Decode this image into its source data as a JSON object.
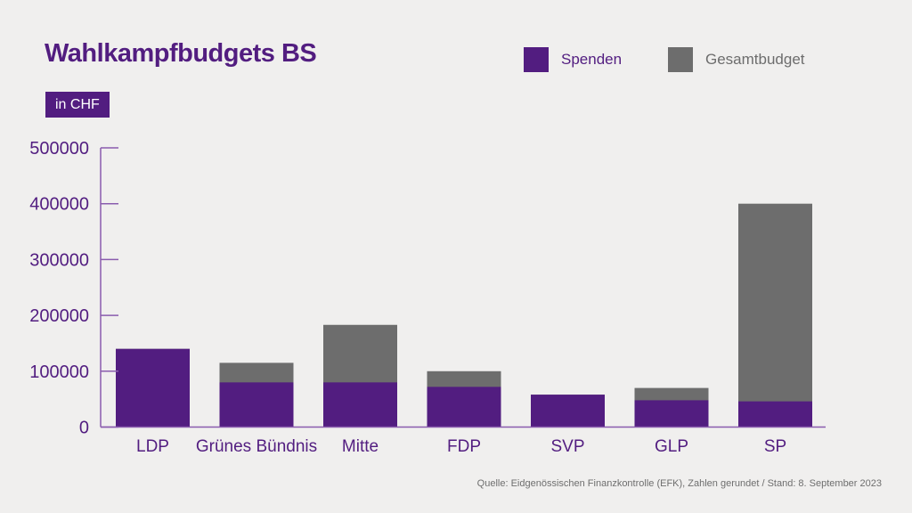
{
  "chart_data": {
    "type": "bar",
    "title": "Wahlkampfbudgets BS",
    "unit_label": "in CHF",
    "categories": [
      "LDP",
      "Grünes Bündnis",
      "Mitte",
      "FDP",
      "SVP",
      "GLP",
      "SP"
    ],
    "series": [
      {
        "name": "Gesamtbudget",
        "color": "#6d6d6d",
        "values": [
          140000,
          115000,
          183000,
          100000,
          58000,
          70000,
          400000
        ]
      },
      {
        "name": "Spenden",
        "color": "#521d80",
        "values": [
          140000,
          80000,
          80000,
          72000,
          58000,
          48000,
          46000
        ]
      }
    ],
    "yticks": [
      0,
      100000,
      200000,
      300000,
      400000,
      500000
    ],
    "ylim": [
      0,
      500000
    ],
    "legend_position": "top-right",
    "source": "Quelle: Eidgenössischen Finanzkontrolle (EFK), Zahlen gerundet / Stand: 8. September 2023"
  }
}
